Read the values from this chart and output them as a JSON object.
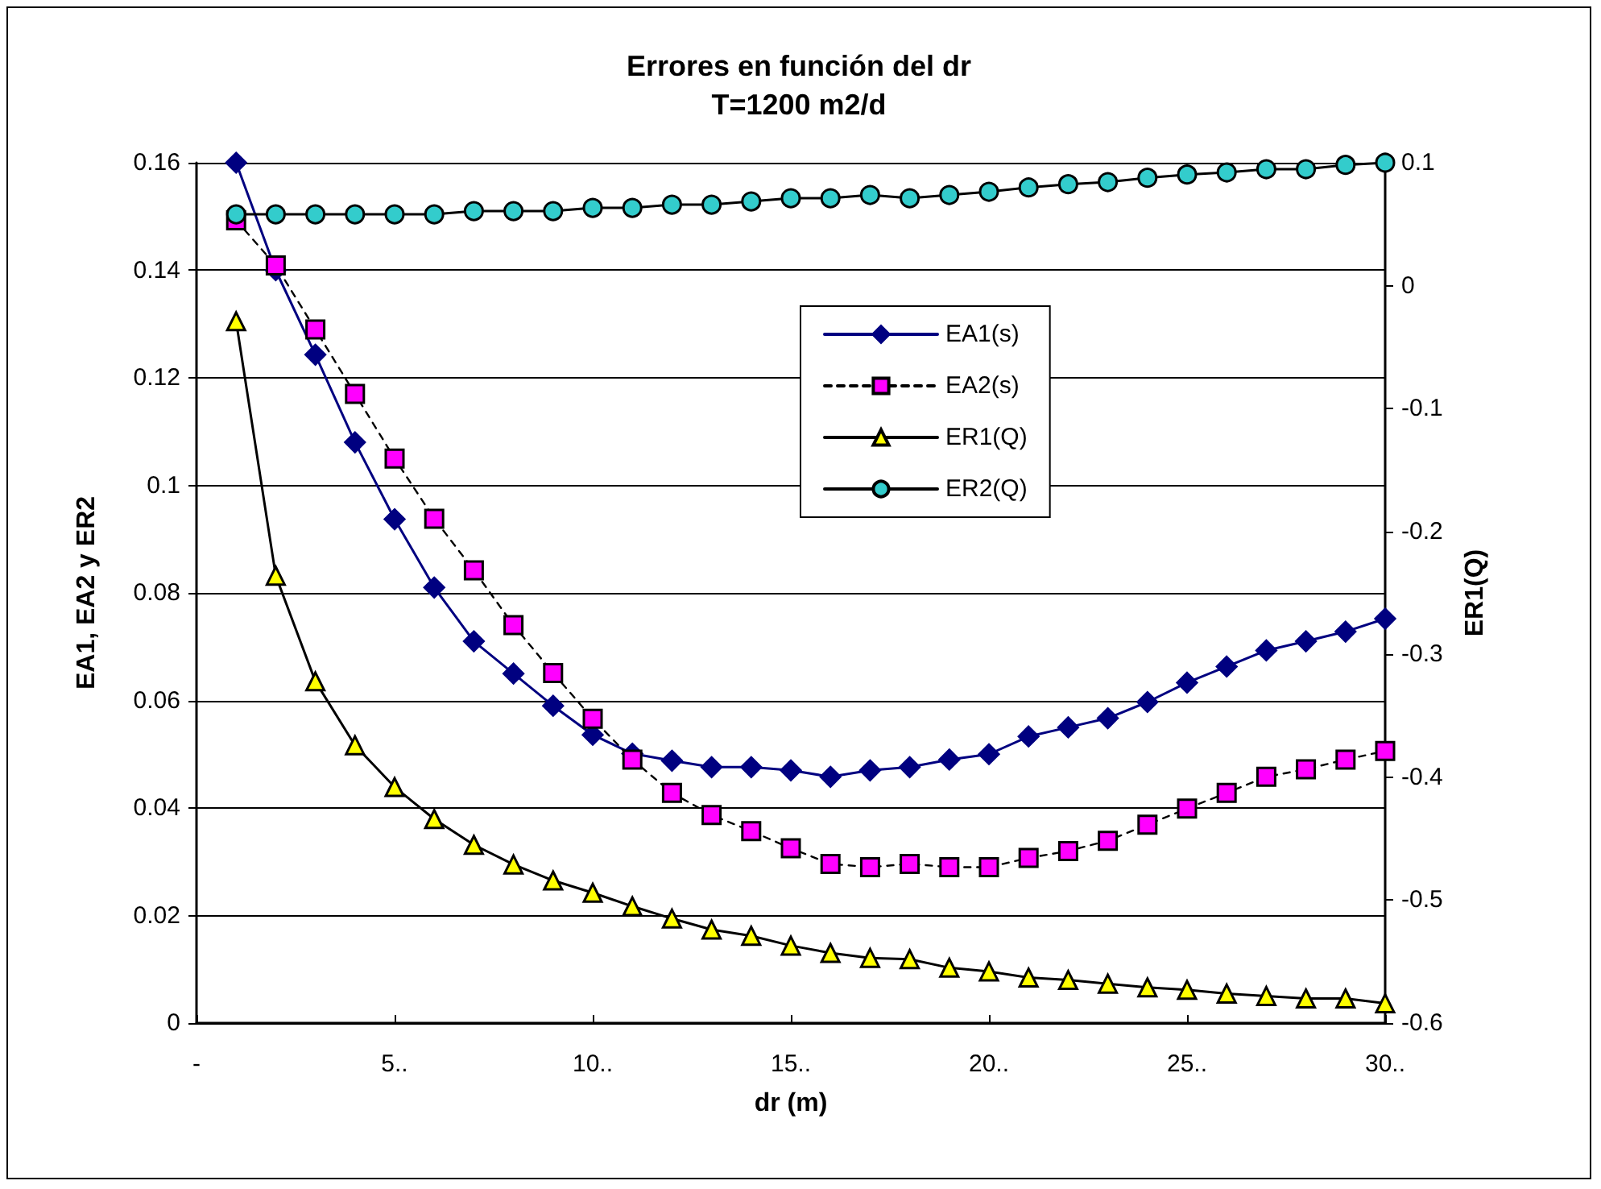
{
  "chart_data": {
    "type": "line",
    "title": "Errores en función del dr",
    "subtitle": "T=1200 m2/d",
    "xlabel": "dr (m)",
    "ylabel": "EA1, EA2 y ER2",
    "y2label": "ER1(Q)",
    "x": [
      1,
      2,
      3,
      4,
      5,
      6,
      7,
      8,
      9,
      10,
      11,
      12,
      13,
      14,
      15,
      16,
      17,
      18,
      19,
      20,
      21,
      22,
      23,
      24,
      25,
      26,
      27,
      28,
      29,
      30
    ],
    "series": [
      {
        "name": "EA1(s)",
        "color": "#000080",
        "marker": "diamond",
        "line_style": "solid",
        "values": [
          0.16,
          0.14,
          0.1243,
          0.108,
          0.0937,
          0.081,
          0.071,
          0.065,
          0.059,
          0.0536,
          0.0501,
          0.0488,
          0.0476,
          0.0476,
          0.047,
          0.0458,
          0.047,
          0.0476,
          0.049,
          0.05,
          0.0533,
          0.055,
          0.0567,
          0.0597,
          0.0633,
          0.0663,
          0.0693,
          0.071,
          0.0728,
          0.0752
        ]
      },
      {
        "name": "EA2(s)",
        "color": "#ff00ff",
        "marker": "square",
        "line_style": "dashed",
        "values": [
          0.1493,
          0.1409,
          0.129,
          0.117,
          0.105,
          0.0938,
          0.0842,
          0.074,
          0.0651,
          0.0566,
          0.049,
          0.0428,
          0.0387,
          0.0357,
          0.0325,
          0.0296,
          0.029,
          0.0296,
          0.029,
          0.029,
          0.0307,
          0.032,
          0.0339,
          0.0369,
          0.0399,
          0.0428,
          0.0458,
          0.0472,
          0.049,
          0.0506
        ]
      },
      {
        "name": "ER1(Q)",
        "color": "#ffff00",
        "marker": "triangle",
        "line_style": "solid",
        "axis": "y2",
        "values": [
          -0.029,
          -0.236,
          -0.322,
          -0.374,
          -0.408,
          -0.434,
          -0.455,
          -0.471,
          -0.484,
          -0.494,
          -0.505,
          -0.515,
          -0.524,
          -0.529,
          -0.537,
          -0.543,
          -0.547,
          -0.548,
          -0.555,
          -0.558,
          -0.563,
          -0.565,
          -0.568,
          -0.571,
          -0.573,
          -0.576,
          -0.578,
          -0.58,
          -0.58,
          -0.584
        ]
      },
      {
        "name": "ER2(Q)",
        "color": "#33cccc",
        "marker": "circle",
        "line_style": "solid",
        "values": [
          0.1504,
          0.1504,
          0.1504,
          0.1504,
          0.1504,
          0.1504,
          0.151,
          0.151,
          0.151,
          0.1516,
          0.1516,
          0.1522,
          0.1522,
          0.1528,
          0.1534,
          0.1534,
          0.154,
          0.1534,
          0.154,
          0.1546,
          0.1554,
          0.156,
          0.1564,
          0.1572,
          0.1578,
          0.1582,
          0.1588,
          0.1588,
          0.1596,
          0.16
        ]
      }
    ],
    "xlim": [
      0,
      30
    ],
    "xticks": [
      {
        "value": 0,
        "label": "-"
      },
      {
        "value": 5,
        "label": "5.."
      },
      {
        "value": 10,
        "label": "10.."
      },
      {
        "value": 15,
        "label": "15.."
      },
      {
        "value": 20,
        "label": "20.."
      },
      {
        "value": 25,
        "label": "25.."
      },
      {
        "value": 30,
        "label": "30.."
      }
    ],
    "ylim": [
      0,
      0.16
    ],
    "yticks": [
      0,
      0.02,
      0.04,
      0.06,
      0.08,
      0.1,
      0.12,
      0.14,
      0.16
    ],
    "y2lim": [
      -0.6,
      0.1
    ],
    "y2ticks": [
      -0.6,
      -0.5,
      -0.4,
      -0.3,
      -0.2,
      -0.1,
      0,
      0.1
    ],
    "grid": "y",
    "legend": "center"
  }
}
